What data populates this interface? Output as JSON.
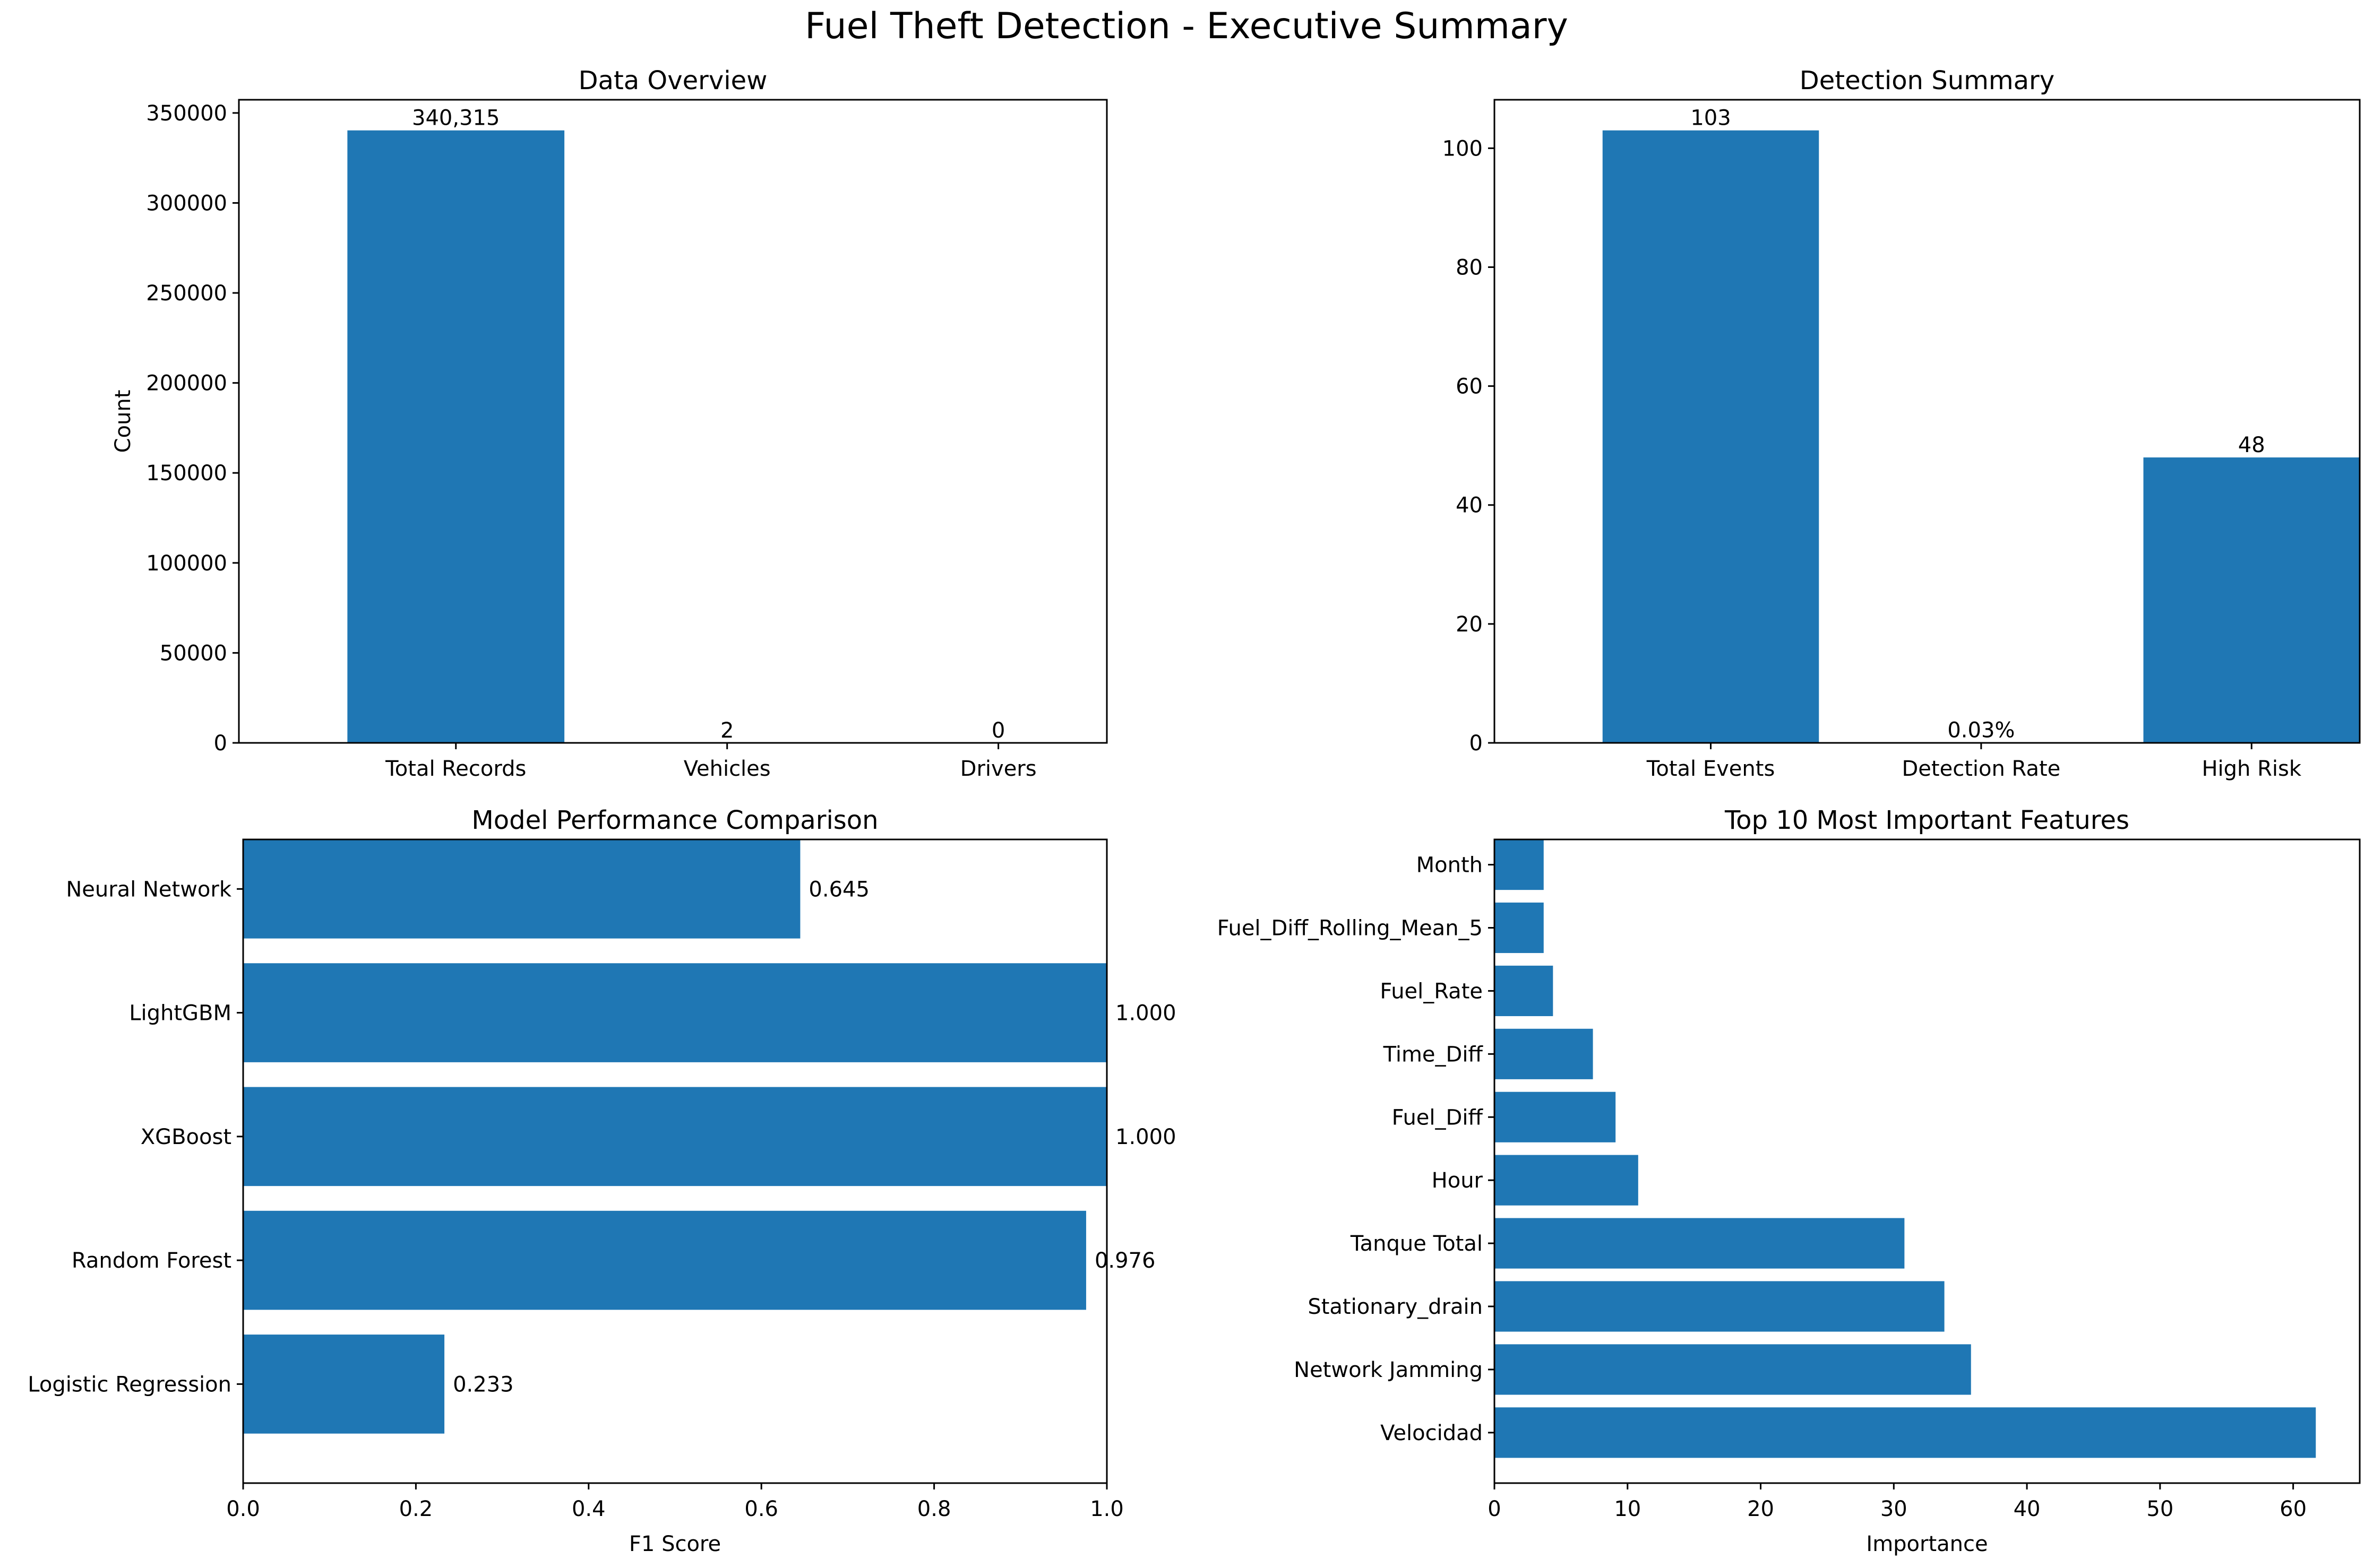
{
  "figure": {
    "title": "Fuel Theft Detection - Executive Summary"
  },
  "chart_data": [
    {
      "type": "bar",
      "title": "Data Overview",
      "xlabel": "",
      "ylabel": "Count",
      "categories": [
        "Total Records",
        "Vehicles",
        "Drivers"
      ],
      "values": [
        340315,
        2,
        0
      ],
      "value_labels": [
        "340,315",
        "2",
        "0"
      ],
      "ylim": [
        0,
        357331
      ],
      "yticks": [
        0,
        50000,
        100000,
        150000,
        200000,
        250000,
        300000,
        350000
      ],
      "ytick_labels": [
        "0",
        "50000",
        "100000",
        "150000",
        "200000",
        "250000",
        "300000",
        "350000"
      ],
      "grid": false,
      "color": "#1f77b4"
    },
    {
      "type": "bar",
      "title": "Detection Summary",
      "xlabel": "",
      "ylabel": "",
      "categories": [
        "Total Events",
        "Detection Rate",
        "High Risk"
      ],
      "values": [
        103,
        0.03,
        48
      ],
      "value_labels": [
        "103",
        "0.03%",
        "48"
      ],
      "ylim": [
        0,
        108.15
      ],
      "yticks": [
        0,
        20,
        40,
        60,
        80,
        100
      ],
      "ytick_labels": [
        "0",
        "20",
        "40",
        "60",
        "80",
        "100"
      ],
      "grid": false,
      "color": "#1f77b4"
    },
    {
      "type": "barh",
      "title": "Model Performance Comparison",
      "xlabel": "F1 Score",
      "ylabel": "",
      "categories": [
        "Logistic Regression",
        "Random Forest",
        "XGBoost",
        "LightGBM",
        "Neural Network"
      ],
      "values": [
        0.233,
        0.976,
        1.0,
        1.0,
        0.645
      ],
      "value_labels": [
        "0.233",
        "0.976",
        "1.000",
        "1.000",
        "0.645"
      ],
      "xlim": [
        0,
        1
      ],
      "xticks": [
        0,
        0.2,
        0.4,
        0.6,
        0.8,
        1.0
      ],
      "xtick_labels": [
        "0.0",
        "0.2",
        "0.4",
        "0.6",
        "0.8",
        "1.0"
      ],
      "grid": false,
      "color": "#1f77b4"
    },
    {
      "type": "barh",
      "title": "Top 10 Most Important Features",
      "xlabel": "Importance",
      "ylabel": "",
      "categories": [
        "Velocidad",
        "Network Jamming",
        "Stationary_drain",
        "Tanque Total",
        "Hour",
        "Fuel_Diff",
        "Time_Diff",
        "Fuel_Rate",
        "Fuel_Diff_Rolling_Mean_5",
        "Month"
      ],
      "values": [
        61.7,
        35.8,
        33.8,
        30.8,
        10.8,
        9.1,
        7.4,
        4.4,
        3.7,
        3.7
      ],
      "xlim": [
        0,
        65
      ],
      "xticks": [
        0,
        10,
        20,
        30,
        40,
        50,
        60
      ],
      "xtick_labels": [
        "0",
        "10",
        "20",
        "30",
        "40",
        "50",
        "60"
      ],
      "grid": false,
      "color": "#1f77b4"
    }
  ]
}
